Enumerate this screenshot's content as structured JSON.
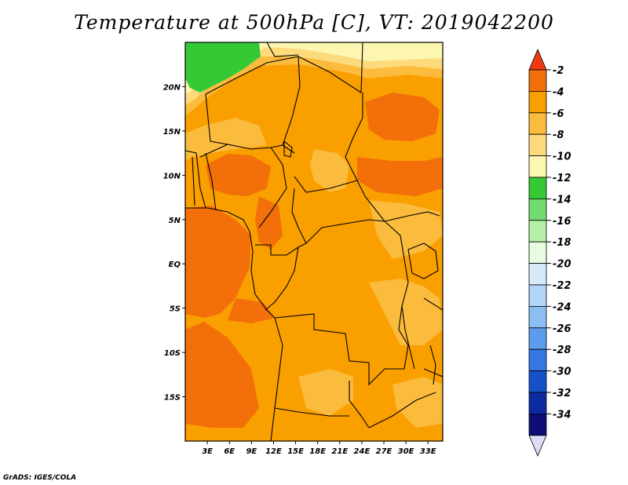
{
  "title": "Temperature at 500hPa [C], VT: 2019042200",
  "credit": "GrADS: IGES/COLA",
  "map": {
    "lon_range": [
      0,
      35
    ],
    "lat_range": [
      -20,
      25
    ],
    "lat_ticks": [
      {
        "value": 20,
        "label": "20N"
      },
      {
        "value": 15,
        "label": "15N"
      },
      {
        "value": 10,
        "label": "10N"
      },
      {
        "value": 5,
        "label": "5N"
      },
      {
        "value": 0,
        "label": "EQ"
      },
      {
        "value": -5,
        "label": "5S"
      },
      {
        "value": -10,
        "label": "10S"
      },
      {
        "value": -15,
        "label": "15S"
      }
    ],
    "lon_ticks": [
      {
        "value": 3,
        "label": "3E"
      },
      {
        "value": 6,
        "label": "6E"
      },
      {
        "value": 9,
        "label": "9E"
      },
      {
        "value": 12,
        "label": "12E"
      },
      {
        "value": 15,
        "label": "15E"
      },
      {
        "value": 18,
        "label": "18E"
      },
      {
        "value": 21,
        "label": "21E"
      },
      {
        "value": 24,
        "label": "24E"
      },
      {
        "value": 27,
        "label": "27E"
      },
      {
        "value": 30,
        "label": "30E"
      },
      {
        "value": 33,
        "label": "33E"
      }
    ],
    "background_color": "#fa9f00"
  },
  "colorbar": {
    "levels": [
      "-2",
      "-4",
      "-6",
      "-8",
      "-10",
      "-12",
      "-14",
      "-16",
      "-18",
      "-20",
      "-22",
      "-24",
      "-26",
      "-28",
      "-30",
      "-32",
      "-34"
    ],
    "top_color": "#ef3a13",
    "bottom_color": "#dcdcf8",
    "colors": [
      "#f26f09",
      "#fa9f00",
      "#fbbb3c",
      "#fddb7c",
      "#fdf6b0",
      "#36c936",
      "#72dc72",
      "#b4f0a5",
      "#e6fbe0",
      "#d6eafa",
      "#b2d6f8",
      "#8cbef3",
      "#5d9bec",
      "#3577e3",
      "#1552c9",
      "#0d2ba0",
      "#0d0d78"
    ]
  }
}
